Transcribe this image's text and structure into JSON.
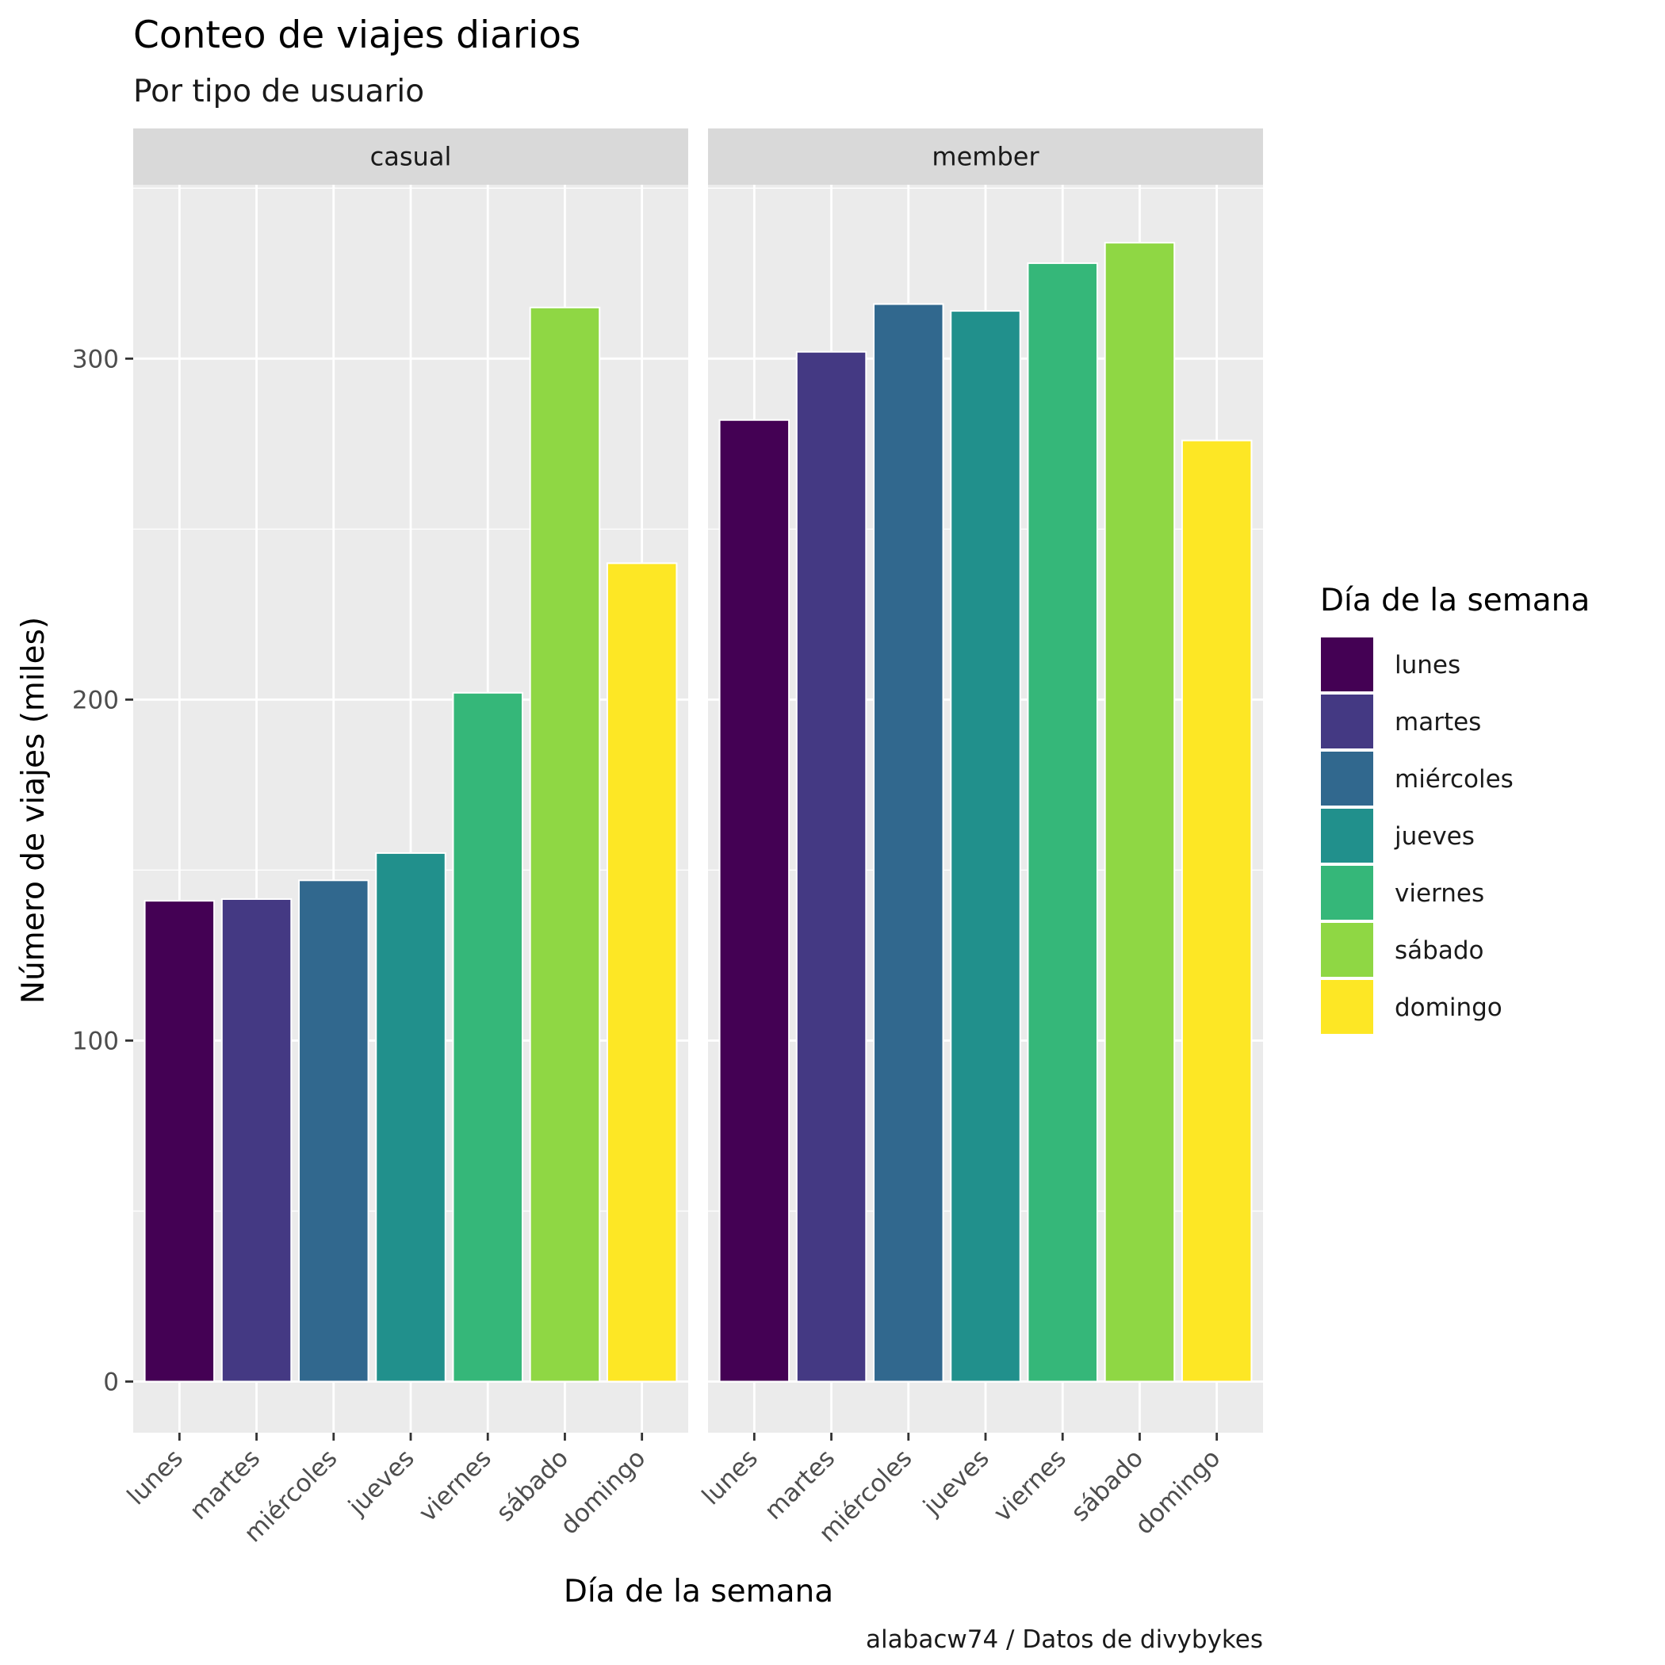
{
  "chart_data": {
    "type": "bar",
    "title": "Conteo de viajes diarios",
    "subtitle": "Por tipo de usuario",
    "xlabel": "Día de la semana",
    "ylabel": "Número de viajes (miles)",
    "caption": "alabacw74 / Datos de divybykes",
    "ylim": [
      -15,
      351
    ],
    "yticks": [
      0,
      100,
      200,
      300
    ],
    "grid": true,
    "legend_position": "right",
    "legend_title": "Día de la semana",
    "categories": [
      "lunes",
      "martes",
      "miércoles",
      "jueves",
      "viernes",
      "sábado",
      "domingo"
    ],
    "colors": [
      "#440154",
      "#443983",
      "#31688E",
      "#21908C",
      "#35B779",
      "#8FD744",
      "#FDE725"
    ],
    "panels": [
      {
        "name": "casual",
        "values": [
          141,
          141.5,
          147,
          155,
          202,
          315,
          240
        ]
      },
      {
        "name": "member",
        "values": [
          282,
          302,
          316,
          314,
          328,
          334,
          276
        ]
      }
    ]
  }
}
